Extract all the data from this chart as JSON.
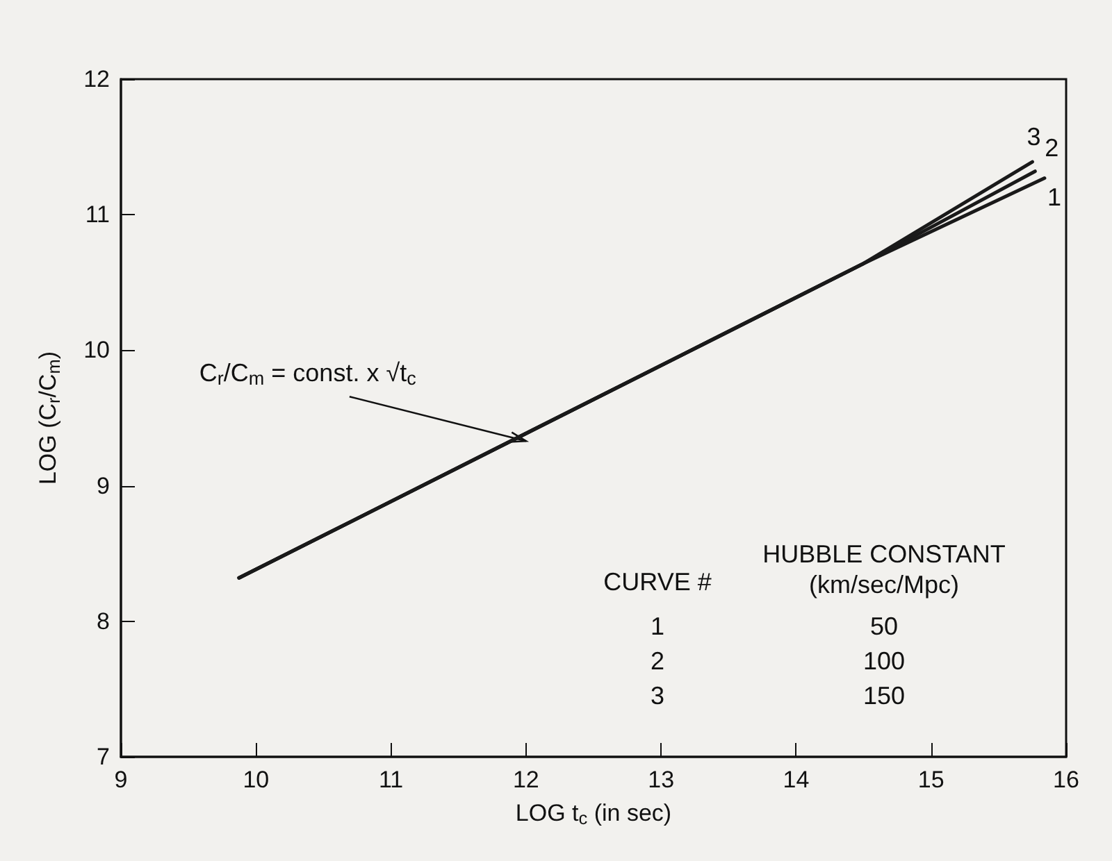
{
  "chart_data": {
    "type": "line",
    "xlabel": "LOG t$_{c}$ (in sec)",
    "ylabel": "LOG (C$_{r}$/C$_{m}$)",
    "xlim": [
      9,
      16
    ],
    "xticks": [
      9,
      10,
      11,
      12,
      13,
      14,
      15,
      16
    ],
    "ylim": [
      7,
      12
    ],
    "yticks": [
      7,
      8,
      9,
      10,
      11,
      12
    ],
    "grid": false,
    "legend": false,
    "marker": "none",
    "line_style": "solid",
    "series": [
      {
        "name": "1",
        "color": "#1a1a1a",
        "x": [
          9.875,
          14.5,
          15.84
        ],
        "values": [
          8.32,
          10.64,
          11.27
        ]
      },
      {
        "name": "2",
        "color": "#1a1a1a",
        "x": [
          9.875,
          14.5,
          15.77
        ],
        "values": [
          8.32,
          10.64,
          11.32
        ]
      },
      {
        "name": "3",
        "color": "#1a1a1a",
        "x": [
          9.875,
          14.5,
          15.75
        ],
        "values": [
          8.32,
          10.64,
          11.39
        ]
      }
    ],
    "annotations": [
      {
        "text": "C$_{r}$/C$_{m}$ = const. x √t$_{c}$",
        "x": 12,
        "y": 9.33
      },
      "CURVE #",
      "HUBBLE CONSTANT\n(km/sec/Mpc)",
      "1",
      "50",
      "2",
      "100",
      "3",
      "150"
    ]
  }
}
